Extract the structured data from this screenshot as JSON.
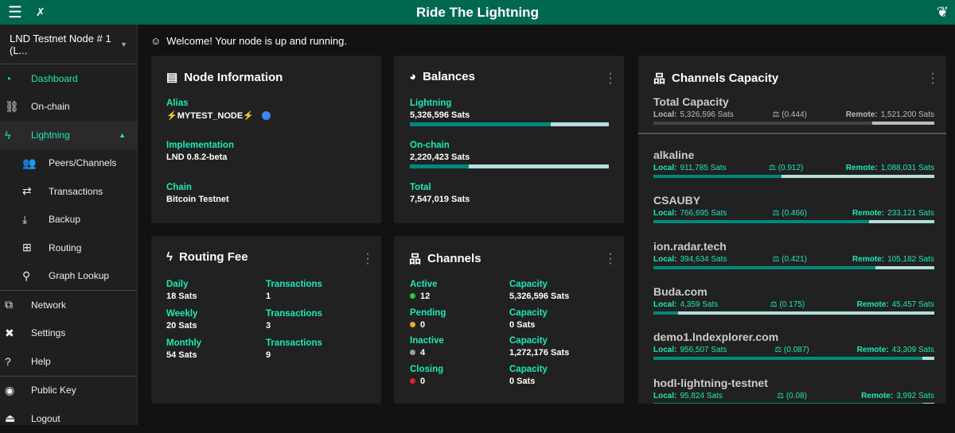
{
  "app": {
    "title": "Ride The Lightning",
    "menu_icon": "menu-icon",
    "pin_icon": "pin-off-icon",
    "logo_icon": "rtl-leaf-logo"
  },
  "sidebar": {
    "node": "LND Testnet Node # 1 (L...",
    "items": [
      {
        "label": "Dashboard",
        "icon": "dashboard-icon"
      },
      {
        "label": "On-chain",
        "icon": "link-icon"
      },
      {
        "label": "Lightning",
        "icon": "bolt-icon"
      },
      {
        "label": "Peers/Channels",
        "icon": "users-icon"
      },
      {
        "label": "Transactions",
        "icon": "exchange-icon"
      },
      {
        "label": "Backup",
        "icon": "download-icon"
      },
      {
        "label": "Routing",
        "icon": "signpost-icon"
      },
      {
        "label": "Graph Lookup",
        "icon": "search-icon"
      },
      {
        "label": "Network",
        "icon": "network-icon"
      },
      {
        "label": "Settings",
        "icon": "tools-icon"
      },
      {
        "label": "Help",
        "icon": "question-icon"
      },
      {
        "label": "Public Key",
        "icon": "eye-icon"
      },
      {
        "label": "Logout",
        "icon": "eject-icon"
      }
    ]
  },
  "welcome": "Welcome! Your node is up and running.",
  "node_info": {
    "title": "Node Information",
    "alias_label": "Alias",
    "alias": "⚡MYTEST_NODE⚡",
    "alias_color": "#3d85f5",
    "impl_label": "Implementation",
    "impl": "LND 0.8.2-beta",
    "chain_label": "Chain",
    "chain": "Bitcoin Testnet"
  },
  "balances": {
    "title": "Balances",
    "lightning_label": "Lightning",
    "lightning": "5,326,596 Sats",
    "lightning_pct": 70.6,
    "onchain_label": "On-chain",
    "onchain": "2,220,423 Sats",
    "onchain_pct": 29.4,
    "total_label": "Total",
    "total": "7,547,019 Sats"
  },
  "routing_fee": {
    "title": "Routing Fee",
    "rows": [
      {
        "label": "Daily",
        "value": "18 Sats",
        "tx_label": "Transactions",
        "tx": "1"
      },
      {
        "label": "Weekly",
        "value": "20 Sats",
        "tx_label": "Transactions",
        "tx": "3"
      },
      {
        "label": "Monthly",
        "value": "54 Sats",
        "tx_label": "Transactions",
        "tx": "9"
      }
    ]
  },
  "channels": {
    "title": "Channels",
    "rows": [
      {
        "label": "Active",
        "count": "12",
        "color": "#2ecc40",
        "cap_label": "Capacity",
        "cap": "5,326,596 Sats"
      },
      {
        "label": "Pending",
        "count": "0",
        "color": "#f0a830",
        "cap_label": "Capacity",
        "cap": "0 Sats"
      },
      {
        "label": "Inactive",
        "count": "4",
        "color": "#9e9e9e",
        "cap_label": "Capacity",
        "cap": "1,272,176 Sats"
      },
      {
        "label": "Closing",
        "count": "0",
        "color": "#e0202a",
        "cap_label": "Capacity",
        "cap": "0 Sats"
      }
    ]
  },
  "capacity": {
    "title": "Channels Capacity",
    "local_label": "Local:",
    "remote_label": "Remote:",
    "items": [
      {
        "name": "Total Capacity",
        "local": "5,326,596 Sats",
        "ratio": "(0.444)",
        "remote": "1,521,200 Sats",
        "local_pct": 77.8
      },
      {
        "name": "alkaline",
        "local": "911,785 Sats",
        "ratio": "(0.912)",
        "remote": "1,088,031 Sats",
        "local_pct": 45.6
      },
      {
        "name": "CSAUBY",
        "local": "766,695 Sats",
        "ratio": "(0.466)",
        "remote": "233,121 Sats",
        "local_pct": 76.7
      },
      {
        "name": "ion.radar.tech",
        "local": "394,634 Sats",
        "ratio": "(0.421)",
        "remote": "105,182 Sats",
        "local_pct": 79.0
      },
      {
        "name": "Buda.com",
        "local": "4,359 Sats",
        "ratio": "(0.175)",
        "remote": "45,457 Sats",
        "local_pct": 8.8
      },
      {
        "name": "demo1.lndexplorer.com",
        "local": "956,507 Sats",
        "ratio": "(0.087)",
        "remote": "43,309 Sats",
        "local_pct": 95.7
      },
      {
        "name": "hodl-lightning-testnet",
        "local": "95,824 Sats",
        "ratio": "(0.08)",
        "remote": "3,992 Sats",
        "local_pct": 96.0
      }
    ]
  },
  "colors": {
    "header": "#00684f",
    "accent": "#1de9b6",
    "bar_fill": "#00897b",
    "bar_bg": "#b2dfdb"
  }
}
